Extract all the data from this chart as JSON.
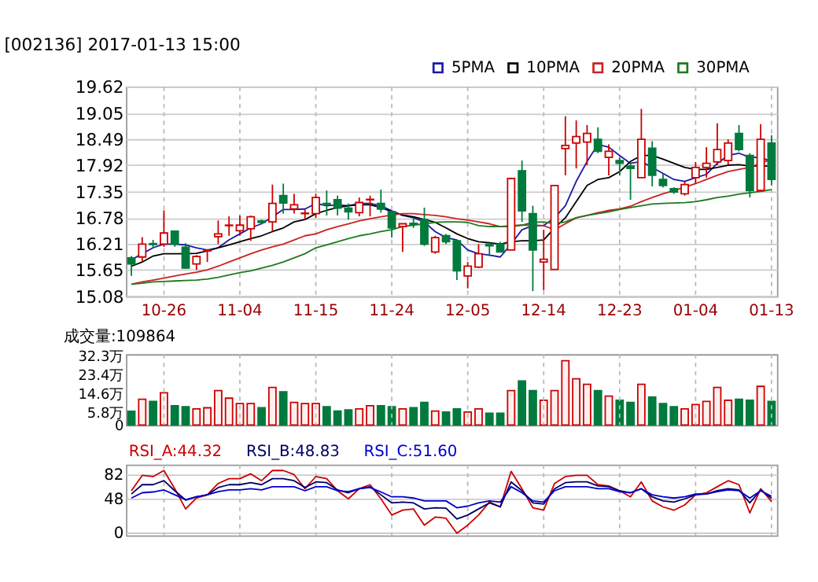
{
  "chart_data": [
    {
      "type": "candlestick",
      "title": "[002136] 2017-01-13 15:00",
      "categories": [
        null,
        null,
        null,
        "10-26",
        null,
        null,
        null,
        null,
        null,
        null,
        "11-04",
        null,
        null,
        null,
        null,
        null,
        null,
        "11-15",
        null,
        null,
        null,
        null,
        null,
        null,
        "11-24",
        null,
        null,
        null,
        null,
        null,
        null,
        "12-05",
        null,
        null,
        null,
        null,
        null,
        null,
        "12-14",
        null,
        null,
        null,
        null,
        null,
        null,
        "12-23",
        null,
        null,
        null,
        null,
        null,
        null,
        "01-04",
        null,
        null,
        null,
        null,
        null,
        null,
        "01-13"
      ],
      "ohlc": [
        [
          15.91,
          15.95,
          15.52,
          15.78
        ],
        [
          15.93,
          16.36,
          15.82,
          16.21
        ],
        [
          16.22,
          16.3,
          16.13,
          16.2
        ],
        [
          16.21,
          16.94,
          16.15,
          16.45
        ],
        [
          16.49,
          16.5,
          16.15,
          16.21
        ],
        [
          16.14,
          16.23,
          15.68,
          15.69
        ],
        [
          15.78,
          15.97,
          15.65,
          15.94
        ],
        [
          16.06,
          16.1,
          15.82,
          16.08
        ],
        [
          16.37,
          16.72,
          16.21,
          16.43
        ],
        [
          16.61,
          16.81,
          16.39,
          16.62
        ],
        [
          16.5,
          16.83,
          16.39,
          16.62
        ],
        [
          16.54,
          16.83,
          16.28,
          16.8
        ],
        [
          16.71,
          16.74,
          16.65,
          16.68
        ],
        [
          16.69,
          17.5,
          16.48,
          17.09
        ],
        [
          17.26,
          17.52,
          16.87,
          17.1
        ],
        [
          16.97,
          17.3,
          16.87,
          17.06
        ],
        [
          16.87,
          16.96,
          16.74,
          16.88
        ],
        [
          16.87,
          17.3,
          16.78,
          17.22
        ],
        [
          17.09,
          17.37,
          16.83,
          17.07
        ],
        [
          17.17,
          17.26,
          16.83,
          16.99
        ],
        [
          16.99,
          17.09,
          16.74,
          16.91
        ],
        [
          16.89,
          17.22,
          16.81,
          17.11
        ],
        [
          17.17,
          17.26,
          16.81,
          17.18
        ],
        [
          17.09,
          17.39,
          16.89,
          16.97
        ],
        [
          16.91,
          16.93,
          16.35,
          16.56
        ],
        [
          16.59,
          16.65,
          16.04,
          16.65
        ],
        [
          16.66,
          16.78,
          16.56,
          16.64
        ],
        [
          16.74,
          17.0,
          16.17,
          16.21
        ],
        [
          16.04,
          16.39,
          16.0,
          16.35
        ],
        [
          16.39,
          16.43,
          16.21,
          16.26
        ],
        [
          16.28,
          16.3,
          15.43,
          15.63
        ],
        [
          15.52,
          15.82,
          15.25,
          15.73
        ],
        [
          15.71,
          16.21,
          15.69,
          16.0
        ],
        [
          16.21,
          16.21,
          15.95,
          16.17
        ],
        [
          16.21,
          16.26,
          16.04,
          16.04
        ],
        [
          16.08,
          17.65,
          16.08,
          17.63
        ],
        [
          17.8,
          18.02,
          16.69,
          16.93
        ],
        [
          16.87,
          17.04,
          15.19,
          16.08
        ],
        [
          15.82,
          16.52,
          15.21,
          15.88
        ],
        [
          15.66,
          17.48,
          15.66,
          17.48
        ],
        [
          18.28,
          18.98,
          17.7,
          18.35
        ],
        [
          18.4,
          18.89,
          17.85,
          18.54
        ],
        [
          18.42,
          18.79,
          17.92,
          18.61
        ],
        [
          18.48,
          18.74,
          18.18,
          18.22
        ],
        [
          18.09,
          18.37,
          17.7,
          18.22
        ],
        [
          18.02,
          18.09,
          17.7,
          17.96
        ],
        [
          17.9,
          17.96,
          17.17,
          17.85
        ],
        [
          17.65,
          19.14,
          17.65,
          18.48
        ],
        [
          18.29,
          18.44,
          17.46,
          17.7
        ],
        [
          17.61,
          17.74,
          17.44,
          17.48
        ],
        [
          17.41,
          17.44,
          17.3,
          17.34
        ],
        [
          17.3,
          17.57,
          17.26,
          17.5
        ],
        [
          17.65,
          17.99,
          17.52,
          17.87
        ],
        [
          17.87,
          18.31,
          17.65,
          17.96
        ],
        [
          17.99,
          18.83,
          17.92,
          18.26
        ],
        [
          18.02,
          18.48,
          17.93,
          18.4
        ],
        [
          18.61,
          18.79,
          18.22,
          18.26
        ],
        [
          18.13,
          18.18,
          17.22,
          17.37
        ],
        [
          17.37,
          18.81,
          17.35,
          18.48
        ],
        [
          18.4,
          18.57,
          17.48,
          17.61
        ]
      ],
      "colors": [
        "#007a3d",
        "#cc0000",
        "#007a3d",
        "#cc0000",
        "#007a3d",
        "#007a3d",
        "#cc0000",
        "#cc0000",
        "#cc0000",
        "#cc0000",
        "#cc0000",
        "#cc0000",
        "#007a3d",
        "#cc0000",
        "#007a3d",
        "#cc0000",
        "#cc0000",
        "#cc0000",
        "#007a3d",
        "#007a3d",
        "#007a3d",
        "#cc0000",
        "#cc0000",
        "#007a3d",
        "#007a3d",
        "#cc0000",
        "#007a3d",
        "#007a3d",
        "#cc0000",
        "#007a3d",
        "#007a3d",
        "#cc0000",
        "#cc0000",
        "#007a3d",
        "#007a3d",
        "#cc0000",
        "#007a3d",
        "#007a3d",
        "#cc0000",
        "#cc0000",
        "#cc0000",
        "#cc0000",
        "#cc0000",
        "#007a3d",
        "#cc0000",
        "#007a3d",
        "#007a3d",
        "#cc0000",
        "#007a3d",
        "#007a3d",
        "#007a3d",
        "#cc0000",
        "#cc0000",
        "#cc0000",
        "#cc0000",
        "#cc0000",
        "#007a3d",
        "#007a3d",
        "#cc0000",
        "#007a3d"
      ],
      "series": [
        {
          "name": "5PMA",
          "type": "line",
          "color": "#1a1aa6",
          "values": [
            15.87,
            16.0,
            16.13,
            16.21,
            16.21,
            16.19,
            16.13,
            16.08,
            16.13,
            16.3,
            16.43,
            16.56,
            16.65,
            16.8,
            16.96,
            16.96,
            16.97,
            17.09,
            17.04,
            17.06,
            17.04,
            17.09,
            17.09,
            17.04,
            16.93,
            16.83,
            16.78,
            16.69,
            16.48,
            16.35,
            16.3,
            16.08,
            16.0,
            15.97,
            15.93,
            16.21,
            16.52,
            16.61,
            16.61,
            16.78,
            17.04,
            17.57,
            18.0,
            18.37,
            18.31,
            18.13,
            17.96,
            18.0,
            17.87,
            17.74,
            17.61,
            17.57,
            17.65,
            17.72,
            17.96,
            18.13,
            18.18,
            18.09,
            18.09,
            18.0
          ]
        },
        {
          "name": "10PMA",
          "type": "line",
          "color": "#000000",
          "values": [
            15.73,
            15.82,
            15.95,
            16.0,
            16.0,
            16.0,
            16.01,
            16.06,
            16.13,
            16.19,
            16.26,
            16.33,
            16.39,
            16.48,
            16.56,
            16.69,
            16.74,
            16.87,
            16.94,
            17.0,
            17.04,
            17.06,
            17.06,
            17.0,
            16.91,
            16.84,
            16.8,
            16.74,
            16.68,
            16.56,
            16.43,
            16.33,
            16.26,
            16.24,
            16.21,
            16.26,
            16.28,
            16.28,
            16.3,
            16.56,
            16.78,
            17.13,
            17.48,
            17.61,
            17.65,
            17.78,
            18.0,
            18.13,
            18.13,
            18.05,
            17.96,
            17.87,
            17.83,
            17.83,
            17.87,
            17.92,
            17.93,
            17.9,
            17.9,
            17.9
          ]
        },
        {
          "name": "20PMA",
          "type": "line",
          "color": "#cc2222",
          "values": [
            15.34,
            15.39,
            15.43,
            15.47,
            15.52,
            15.56,
            15.6,
            15.65,
            15.73,
            15.82,
            15.91,
            16.0,
            16.08,
            16.15,
            16.21,
            16.3,
            16.39,
            16.43,
            16.52,
            16.59,
            16.65,
            16.71,
            16.76,
            16.8,
            16.84,
            16.87,
            16.87,
            16.85,
            16.83,
            16.8,
            16.76,
            16.73,
            16.69,
            16.65,
            16.59,
            16.59,
            16.62,
            16.62,
            16.61,
            16.52,
            16.65,
            16.78,
            16.83,
            16.89,
            16.94,
            16.97,
            17.03,
            17.13,
            17.22,
            17.3,
            17.37,
            17.44,
            17.52,
            17.61,
            17.7,
            17.78,
            17.83,
            17.87,
            17.96,
            18.05
          ]
        },
        {
          "name": "30PMA",
          "type": "line",
          "color": "#1f7a1f",
          "values": [
            15.34,
            15.36,
            15.39,
            15.4,
            15.41,
            15.42,
            15.43,
            15.45,
            15.49,
            15.54,
            15.59,
            15.63,
            15.69,
            15.75,
            15.82,
            15.91,
            16.0,
            16.13,
            16.19,
            16.26,
            16.33,
            16.39,
            16.43,
            16.48,
            16.52,
            16.59,
            16.62,
            16.65,
            16.68,
            16.69,
            16.69,
            16.68,
            16.61,
            16.59,
            16.59,
            16.61,
            16.62,
            16.68,
            16.69,
            16.65,
            16.69,
            16.78,
            16.83,
            16.87,
            16.91,
            16.96,
            17.0,
            17.04,
            17.08,
            17.09,
            17.1,
            17.11,
            17.13,
            17.17,
            17.22,
            17.25,
            17.29,
            17.32,
            17.35,
            17.39
          ]
        }
      ],
      "ylim": [
        15.08,
        19.62
      ],
      "yticks": [
        15.08,
        15.65,
        16.21,
        16.78,
        17.35,
        17.92,
        18.49,
        19.05,
        19.62
      ],
      "grid": true,
      "legend": "top"
    },
    {
      "type": "bar",
      "title": "成交量:109864",
      "categories": [
        null,
        null,
        null,
        null,
        null,
        null,
        null,
        null,
        null,
        null,
        null,
        null,
        null,
        null,
        null,
        null,
        null,
        null,
        null,
        null,
        null,
        null,
        null,
        null,
        null,
        null,
        null,
        null,
        null,
        null,
        null,
        null,
        null,
        null,
        null,
        null,
        null,
        null,
        null,
        null,
        null,
        null,
        null,
        null,
        null,
        null,
        null,
        null,
        null,
        null,
        null,
        null,
        null,
        null,
        null,
        null,
        null,
        null,
        null,
        null
      ],
      "values": [
        6.4,
        12,
        11,
        15,
        9,
        8.5,
        7.5,
        8,
        16,
        12.5,
        10,
        10,
        8,
        17.5,
        15.5,
        10.5,
        10,
        10,
        8.5,
        6.5,
        7,
        7.5,
        9,
        9,
        8.5,
        7.5,
        8,
        10.5,
        6.5,
        6,
        7.5,
        6,
        7.5,
        5.5,
        5.5,
        16,
        20.5,
        16,
        11.5,
        16,
        30,
        21.5,
        19,
        16,
        13.5,
        11.5,
        10.5,
        19,
        13,
        10,
        8.5,
        7.5,
        9.5,
        11,
        17.5,
        11.5,
        12,
        11.5,
        18,
        10.9864
      ],
      "colors": [
        "#007a3d",
        "#cc0000",
        "#007a3d",
        "#cc0000",
        "#007a3d",
        "#007a3d",
        "#cc0000",
        "#cc0000",
        "#cc0000",
        "#cc0000",
        "#cc0000",
        "#cc0000",
        "#007a3d",
        "#cc0000",
        "#007a3d",
        "#cc0000",
        "#cc0000",
        "#cc0000",
        "#007a3d",
        "#007a3d",
        "#007a3d",
        "#cc0000",
        "#cc0000",
        "#007a3d",
        "#007a3d",
        "#cc0000",
        "#007a3d",
        "#007a3d",
        "#cc0000",
        "#007a3d",
        "#007a3d",
        "#cc0000",
        "#cc0000",
        "#007a3d",
        "#007a3d",
        "#cc0000",
        "#007a3d",
        "#007a3d",
        "#cc0000",
        "#cc0000",
        "#cc0000",
        "#cc0000",
        "#cc0000",
        "#007a3d",
        "#cc0000",
        "#007a3d",
        "#007a3d",
        "#cc0000",
        "#007a3d",
        "#007a3d",
        "#007a3d",
        "#cc0000",
        "#cc0000",
        "#cc0000",
        "#cc0000",
        "#cc0000",
        "#007a3d",
        "#007a3d",
        "#cc0000",
        "#007a3d"
      ],
      "ylim": [
        0,
        33
      ],
      "yticks": [
        0,
        {
          "value": 5.8,
          "label": "5.8万"
        },
        {
          "value": 14.6,
          "label": "14.6万"
        },
        {
          "value": 23.4,
          "label": "23.4万"
        },
        {
          "value": 32.3,
          "label": "32.3万"
        }
      ],
      "grid": "x",
      "tick_labels": "y"
    },
    {
      "type": "line",
      "categories": [
        null,
        null,
        null,
        null,
        null,
        null,
        null,
        null,
        null,
        null,
        null,
        null,
        null,
        null,
        null,
        null,
        null,
        null,
        null,
        null,
        null,
        null,
        null,
        null,
        null,
        null,
        null,
        null,
        null,
        null,
        null,
        null,
        null,
        null,
        null,
        null,
        null,
        null,
        null,
        null,
        null,
        null,
        null,
        null,
        null,
        null,
        null,
        null,
        null,
        null,
        null,
        null,
        null,
        null,
        null,
        null,
        null,
        null,
        null,
        null
      ],
      "series": [
        {
          "name": "RSI_A:44.32",
          "color": "#cc0000",
          "values": [
            59.4,
            80.9,
            79.2,
            87.7,
            62.2,
            33.9,
            49.2,
            53.7,
            69.6,
            76.3,
            76.3,
            83.1,
            73.5,
            87.7,
            87.7,
            82,
            62.2,
            79.2,
            76.3,
            59.4,
            48.1,
            62.2,
            67.9,
            48.1,
            25.4,
            32.2,
            33.9,
            11.3,
            22.6,
            20.9,
            0,
            11.3,
            25.4,
            43.5,
            36.8,
            86.5,
            62.2,
            35.6,
            32.2,
            69.6,
            79.2,
            80.9,
            80.9,
            67.9,
            66.2,
            59.4,
            50.9,
            71.8,
            45.2,
            36.8,
            32.2,
            39.6,
            53.7,
            56.6,
            65,
            73.5,
            67.9,
            28.3,
            62.2,
            44.32
          ]
        },
        {
          "name": "RSI_B:48.83",
          "color": "#000066",
          "values": [
            54.9,
            67.9,
            67.9,
            73.5,
            59.4,
            46.4,
            50.9,
            53.7,
            63.9,
            67.9,
            67.9,
            70.7,
            67.9,
            76.3,
            76.3,
            73.5,
            63.9,
            71.8,
            70.7,
            60.5,
            56.6,
            62.2,
            65,
            53.7,
            42.4,
            43.5,
            42.4,
            33.9,
            35.6,
            35.1,
            19.8,
            25.4,
            33.9,
            42.4,
            36.8,
            71.8,
            59.4,
            42.4,
            40.7,
            62.2,
            70.7,
            71.8,
            71.8,
            66.2,
            65,
            59.4,
            56.6,
            62.2,
            50.9,
            45.2,
            43.5,
            48.1,
            53.7,
            54.9,
            59.4,
            62.2,
            60.5,
            42.4,
            60.5,
            48.83
          ]
        },
        {
          "name": "RSI_C:51.60",
          "color": "#0000cc",
          "values": [
            49.2,
            56.6,
            57.7,
            60.5,
            53.7,
            46.9,
            50.9,
            53.7,
            58.2,
            60.5,
            60.5,
            62.2,
            60.5,
            65,
            65,
            65,
            59.4,
            65,
            65,
            59.4,
            58.2,
            62.2,
            63.9,
            57.7,
            50.9,
            50.9,
            49.2,
            45.2,
            45.2,
            45.2,
            35.6,
            37.9,
            42.4,
            45.2,
            43.5,
            65,
            56.6,
            45.2,
            43.5,
            59.4,
            65,
            65,
            65,
            62.2,
            62.2,
            58.2,
            56.6,
            62.2,
            53.7,
            50.9,
            49.2,
            50.9,
            54.9,
            54.9,
            58.2,
            60.5,
            59.4,
            49.2,
            59.4,
            51.6
          ]
        }
      ],
      "ylim": [
        -3,
        96
      ],
      "yticks": [
        0,
        48,
        82
      ],
      "grid": true,
      "tick_labels": "y"
    }
  ]
}
